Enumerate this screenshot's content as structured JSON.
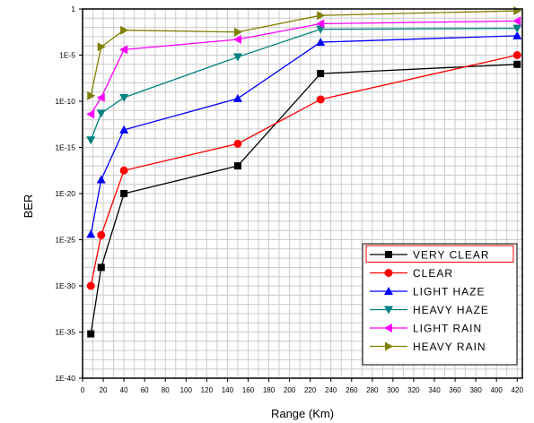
{
  "chart_data": {
    "type": "line",
    "title": "",
    "xlabel": "Range (Km)",
    "ylabel": "BER",
    "xscale": "linear",
    "yscale": "log",
    "xlim": [
      0,
      425
    ],
    "ylim_log10": [
      -40,
      0
    ],
    "grid": true,
    "legend_position": "bottom-right",
    "x_tick_labels": [
      "0",
      "20",
      "40",
      "60",
      "80",
      "100",
      "120",
      "140",
      "160",
      "180",
      "200",
      "220",
      "240",
      "260",
      "280",
      "300",
      "320",
      "340",
      "360",
      "380",
      "400",
      "420"
    ],
    "y_tick_labels": [
      "1",
      "1E-5",
      "1E-10",
      "1E-15",
      "1E-20",
      "1E-25",
      "1E-30",
      "1E-35",
      "1E-40"
    ],
    "x": [
      8,
      18,
      40,
      150,
      230,
      420
    ],
    "series": [
      {
        "name": "VERY CLEAR",
        "color": "#000000",
        "marker": "square",
        "log10_values": [
          -35.2,
          -28,
          -20,
          -17,
          -7,
          -6
        ]
      },
      {
        "name": "CLEAR",
        "color": "#ff0000",
        "marker": "circle",
        "log10_values": [
          -30,
          -24.5,
          -17.5,
          -14.6,
          -9.8,
          -5
        ]
      },
      {
        "name": "LIGHT HAZE",
        "color": "#0000ff",
        "marker": "triangle-up",
        "log10_values": [
          -24.4,
          -18.5,
          -13.1,
          -9.7,
          -3.6,
          -2.9
        ]
      },
      {
        "name": "HEAVY HAZE",
        "color": "#008080",
        "marker": "triangle-down",
        "log10_values": [
          -14.2,
          -11.3,
          -9.6,
          -5.2,
          -2.2,
          -2.1
        ]
      },
      {
        "name": "LIGHT RAIN",
        "color": "#ff00ff",
        "marker": "triangle-left",
        "log10_values": [
          -11.4,
          -9.6,
          -4.4,
          -3.3,
          -1.6,
          -1.3
        ]
      },
      {
        "name": "HEAVY RAIN",
        "color": "#808000",
        "marker": "triangle-right",
        "log10_values": [
          -9.4,
          -4.1,
          -2.3,
          -2.5,
          -0.7,
          -0.2
        ]
      }
    ]
  }
}
